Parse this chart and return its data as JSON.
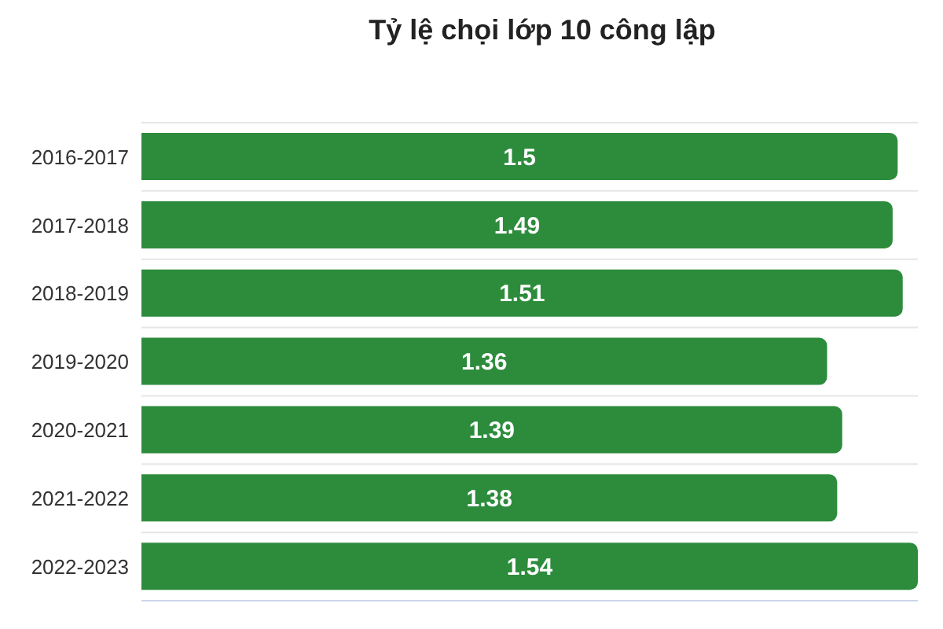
{
  "chart_data": {
    "type": "bar",
    "orientation": "horizontal",
    "title": "Tỷ lệ chọi lớp 10 công lập",
    "categories": [
      "2016-2017",
      "2017-2018",
      "2018-2019",
      "2019-2020",
      "2020-2021",
      "2021-2022",
      "2022-2023"
    ],
    "values": [
      1.5,
      1.49,
      1.51,
      1.36,
      1.39,
      1.38,
      1.54
    ],
    "color": "#2d8c3c",
    "data_labels": true,
    "grid": "y",
    "tick_labels": "y"
  }
}
